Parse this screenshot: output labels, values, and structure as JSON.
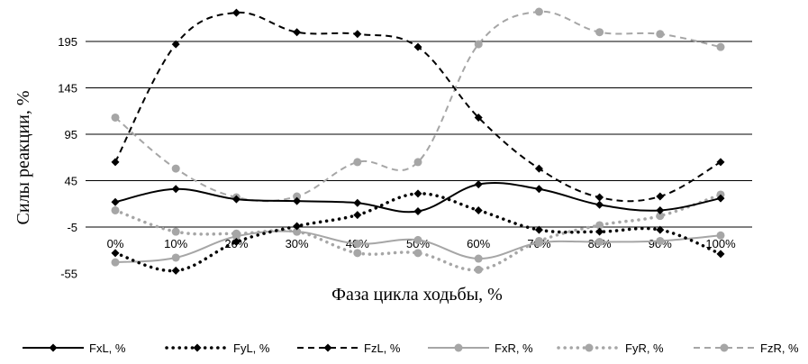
{
  "chart_data": {
    "type": "line",
    "title": "",
    "xlabel": "Фаза цикла ходьбы, %",
    "ylabel": "Силы реакции, %",
    "categories": [
      "0%",
      "10%",
      "20%",
      "30%",
      "40%",
      "50%",
      "60%",
      "70%",
      "80%",
      "90%",
      "100%"
    ],
    "y_ticks": [
      -55,
      -5,
      45,
      95,
      145,
      195
    ],
    "ylim": [
      -55,
      230
    ],
    "grid": "horizontal",
    "legend_position": "bottom",
    "series": [
      {
        "name": "FxL, %",
        "color": "#000000",
        "dash": "solid",
        "marker": "diamond",
        "values": [
          22,
          36,
          25,
          23,
          21,
          12,
          41,
          36,
          19,
          13,
          26
        ]
      },
      {
        "name": "FyL, %",
        "color": "#000000",
        "dash": "dotted",
        "marker": "diamond",
        "values": [
          -33,
          -52,
          -21,
          -4,
          8,
          31,
          13,
          -8,
          -10,
          -8,
          -34
        ]
      },
      {
        "name": "FzL, %",
        "color": "#000000",
        "dash": "dashed",
        "marker": "diamond",
        "values": [
          65,
          192,
          226,
          205,
          203,
          189,
          113,
          58,
          27,
          28,
          65
        ]
      },
      {
        "name": "FxR, %",
        "color": "#a6a6a6",
        "dash": "solid",
        "marker": "circle",
        "values": [
          -43,
          -38,
          -15,
          -10,
          -23,
          -19,
          -39,
          -22,
          -21,
          -20,
          -14
        ]
      },
      {
        "name": "FyR, %",
        "color": "#a6a6a6",
        "dash": "dotted",
        "marker": "circle",
        "values": [
          13,
          -10,
          -12,
          -10,
          -33,
          -33,
          -51,
          -20,
          -3,
          7,
          30
        ]
      },
      {
        "name": "FzR, %",
        "color": "#a6a6a6",
        "dash": "dashed",
        "marker": "circle",
        "values": [
          113,
          58,
          27,
          28,
          65,
          65,
          192,
          227,
          205,
          203,
          189
        ]
      }
    ]
  }
}
